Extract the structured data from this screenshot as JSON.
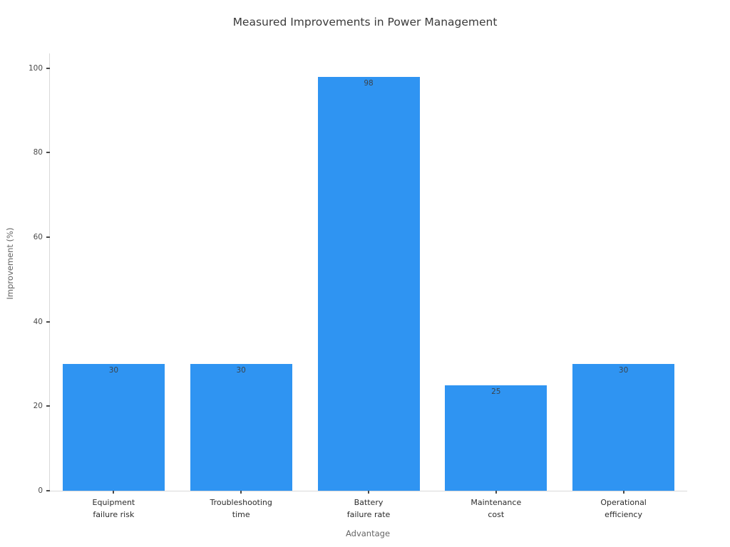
{
  "chart_data": {
    "type": "bar",
    "title": "Measured Improvements in Power Management",
    "xlabel": "Advantage",
    "ylabel": "Improvement (%)",
    "categories": [
      "Equipment\nfailure risk",
      "Troubleshooting\ntime",
      "Battery\nfailure rate",
      "Maintenance\ncost",
      "Operational\nefficiency"
    ],
    "values": [
      30,
      30,
      98,
      25,
      30
    ],
    "yticks": [
      0,
      20,
      40,
      60,
      80,
      100
    ],
    "ylim": [
      0,
      103.5
    ],
    "grid": false,
    "legend": null,
    "colors": {
      "bar": "#2F94F2",
      "axis_line": "#d9d9d9",
      "tick_mark": "#4a4a4a",
      "tick_text": "#4a4a4a",
      "category_text": "#2b2b2b",
      "axis_label_text": "#666666",
      "title_text": "#3a3a3a",
      "bar_value_text": "#3a444d",
      "background": "#ffffff"
    }
  }
}
